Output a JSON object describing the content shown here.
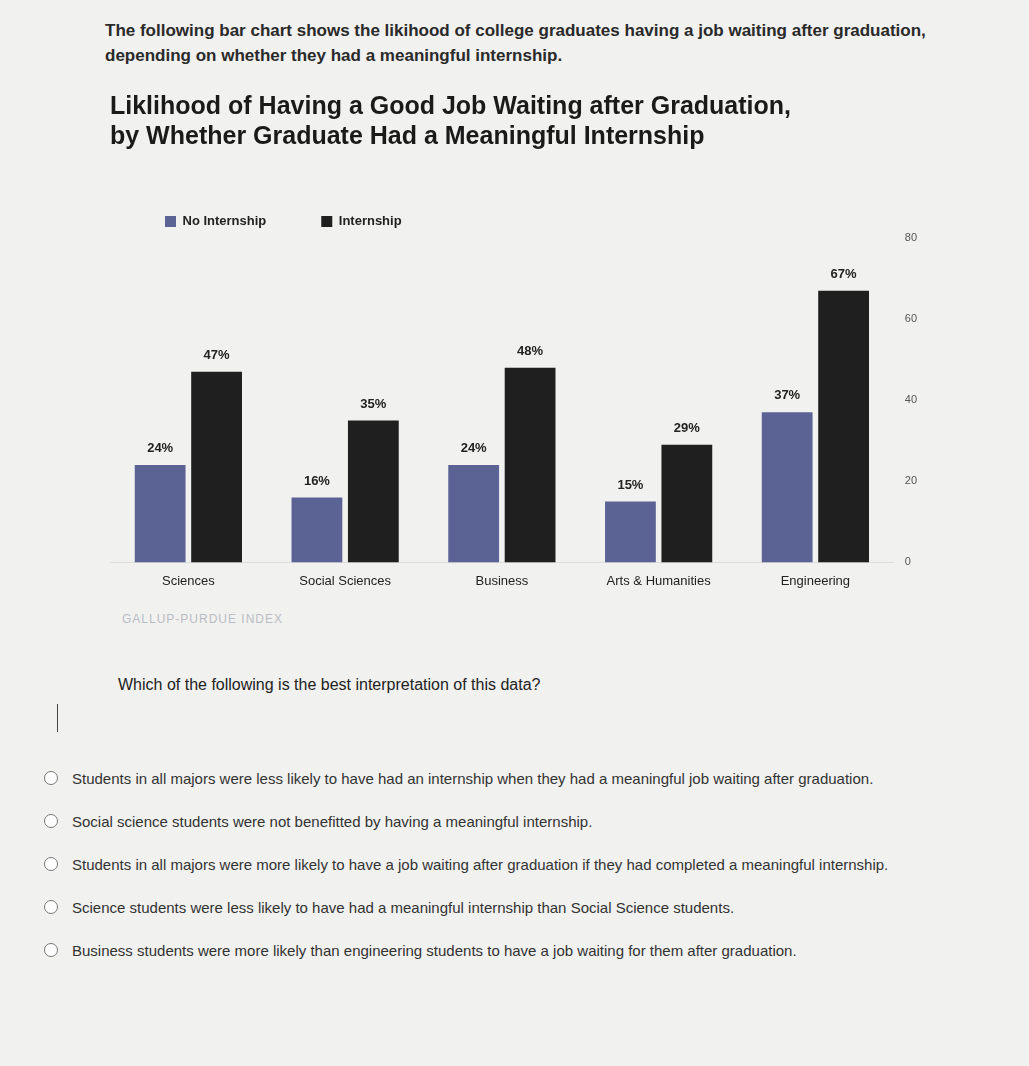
{
  "header": {
    "text": "The following bar chart shows the likihood of college graduates having a job waiting after graduation, depending on whether they had a meaningful internship."
  },
  "chart_data": {
    "type": "bar",
    "title": [
      "Liklihood of Having a Good Job Waiting after Graduation,",
      "by Whether Graduate Had a Meaningful Internship"
    ],
    "categories": [
      "Sciences",
      "Social Sciences",
      "Business",
      "Arts & Humanities",
      "Engineering"
    ],
    "series": [
      {
        "name": "No Internship",
        "color": "#5b6294",
        "values": [
          24,
          16,
          24,
          15,
          37
        ],
        "value_labels": [
          "24%",
          "16%",
          "24%",
          "15%",
          "37%"
        ]
      },
      {
        "name": "Internship",
        "color": "#1f1f1f",
        "values": [
          47,
          35,
          48,
          29,
          67
        ],
        "value_labels": [
          "47%",
          "35%",
          "48%",
          "29%",
          "67%"
        ]
      }
    ],
    "ylim": [
      0,
      80
    ],
    "yticks": [
      0,
      20,
      40,
      60,
      80
    ],
    "grid": false,
    "legend": "top-left",
    "data_labels": true,
    "source": "GALLUP-PURDUE INDEX"
  },
  "question": {
    "text": "Which of the following is the best interpretation of this data?",
    "options": [
      "Students in all majors were less likely to have had an internship when they had a meaningful job waiting after graduation.",
      "Social science students were not benefitted by having a meaningful internship.",
      "Students in all majors were more likely to have a job waiting after graduation if they had completed a meaningful internship.",
      "Science students were less likely to have had a meaningful internship than Social Science students.",
      "Business students were more likely than engineering students to have a job waiting for them after graduation."
    ]
  }
}
